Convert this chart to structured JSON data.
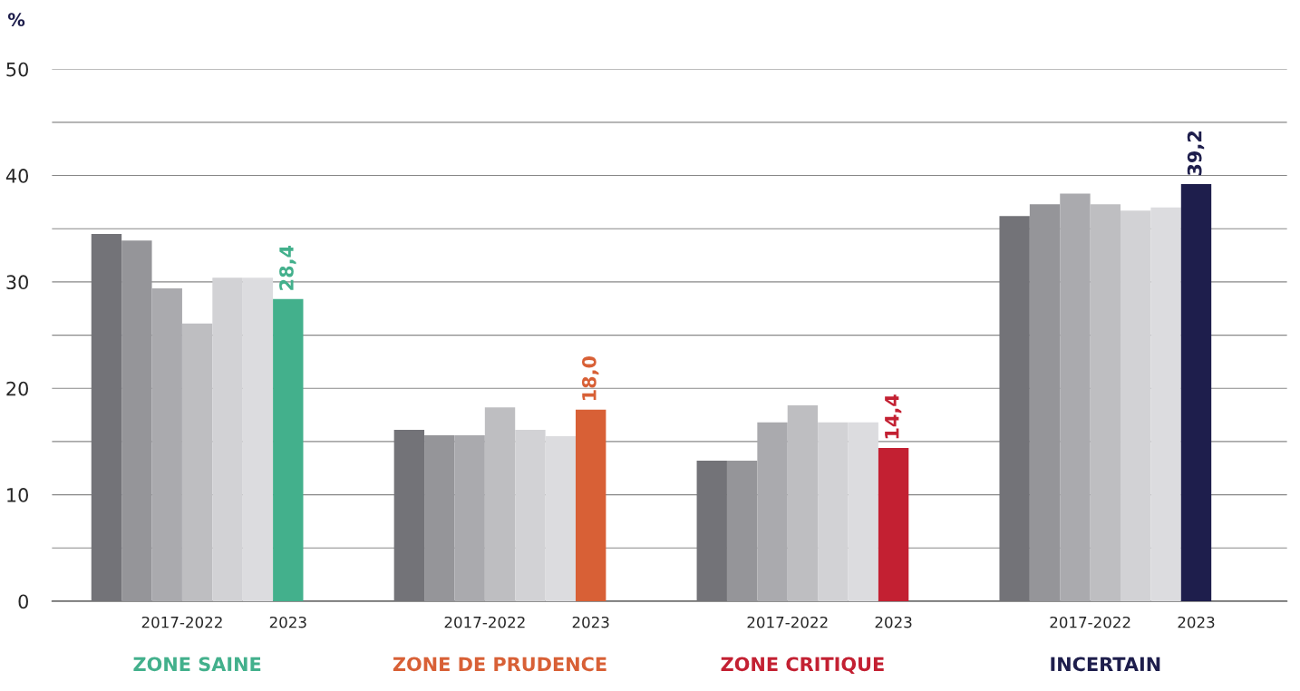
{
  "chart_data": {
    "type": "bar",
    "ylabel": "%",
    "categories": [
      "ZONE SAINE",
      "ZONE DE PRUDENCE",
      "ZONE CRITIQUE",
      "INCERTAIN"
    ],
    "series": [
      {
        "color": "#737378",
        "values": [
          34.5,
          16.1,
          13.2,
          36.2
        ]
      },
      {
        "color": "#959599",
        "values": [
          33.9,
          15.6,
          13.2,
          37.3
        ]
      },
      {
        "color": "#aaaaae",
        "values": [
          29.4,
          15.6,
          16.8,
          38.3
        ]
      },
      {
        "color": "#bebec1",
        "values": [
          26.1,
          18.2,
          18.4,
          37.3
        ]
      },
      {
        "color": "#d2d2d5",
        "values": [
          30.4,
          16.1,
          16.8,
          36.7
        ]
      },
      {
        "color": "#dcdcdf",
        "values": [
          30.4,
          15.5,
          16.8,
          37.0
        ]
      },
      {
        "colors": [
          "#43b08c",
          "#d86036",
          "#c32032",
          "#1e1e4c"
        ],
        "values": [
          28.4,
          18.0,
          14.4,
          39.2
        ],
        "value_labels": [
          "28,4",
          "18,0",
          "14,4",
          "39,2"
        ]
      }
    ],
    "ylim": [
      0,
      50
    ],
    "yticks": [
      0,
      {
        "value": 5,
        "label": null
      },
      10,
      {
        "value": 15,
        "label": null
      },
      20,
      {
        "value": 25,
        "label": null
      },
      30,
      {
        "value": 35,
        "label": null
      },
      40,
      {
        "value": 45,
        "label": null
      },
      50
    ],
    "grid": "y",
    "legend": false,
    "annotations": [
      "2017-2022",
      "2023"
    ]
  }
}
